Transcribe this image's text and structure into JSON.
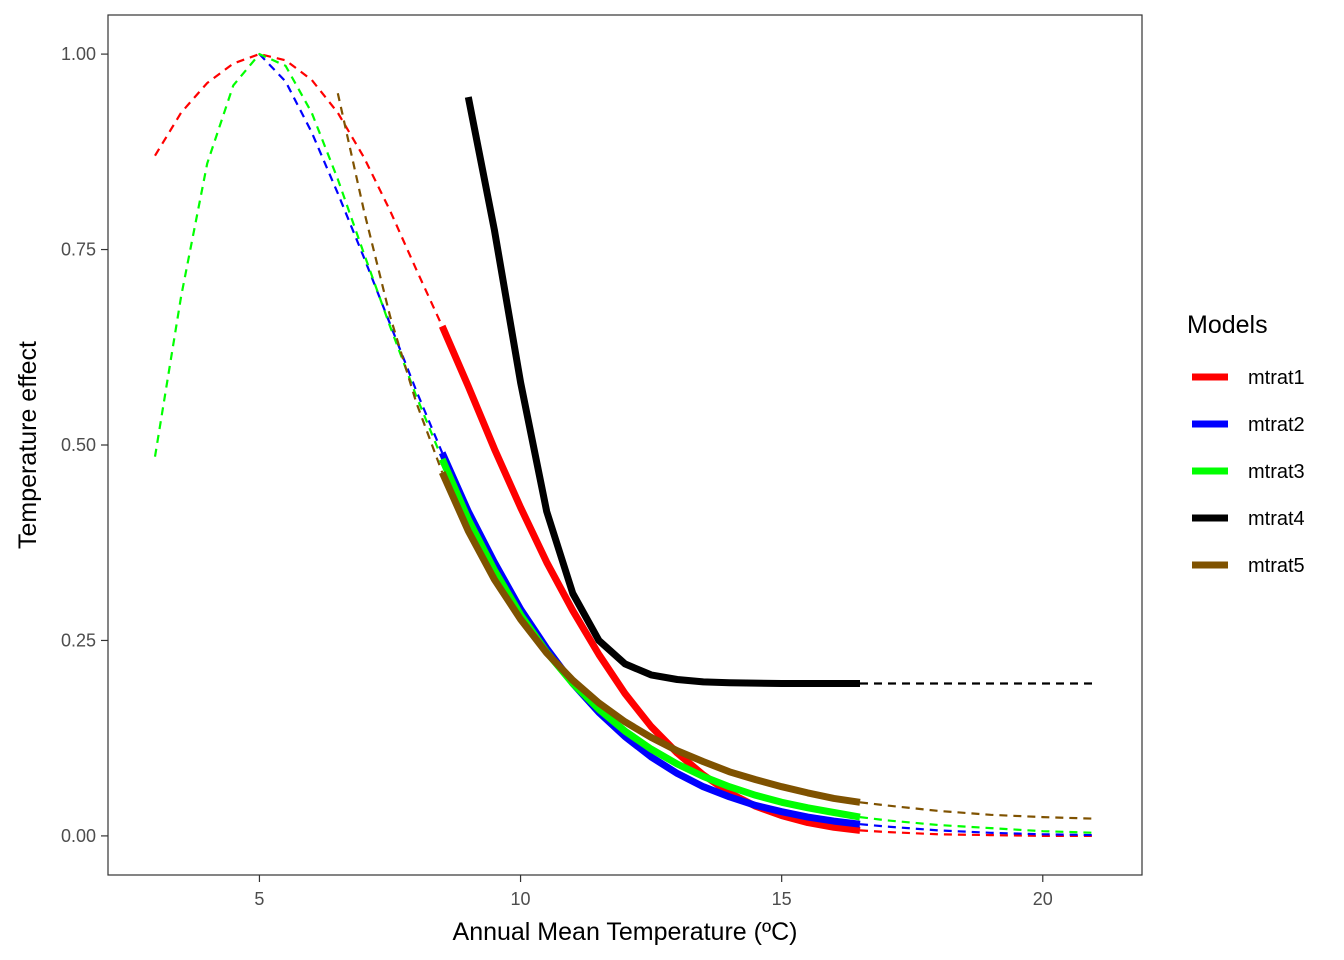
{
  "chart_data": {
    "type": "line",
    "xlabel": "Annual Mean Temperature (ºC)",
    "ylabel": "Temperature effect",
    "xlim": [
      2.1,
      21.9
    ],
    "ylim": [
      -0.05,
      1.05
    ],
    "xticks": [
      5,
      10,
      15,
      20
    ],
    "yticks": [
      0.0,
      0.25,
      0.5,
      0.75,
      1.0
    ],
    "xtick_labels": [
      "5",
      "10",
      "15",
      "20"
    ],
    "ytick_labels": [
      "0.00",
      "0.25",
      "0.50",
      "0.75",
      "1.00"
    ],
    "grid": false,
    "legend": {
      "title": "Models",
      "placement": "right"
    },
    "series": [
      {
        "name": "mtrat1",
        "color": "#ff0000",
        "dashed": [
          {
            "x": 3.0,
            "y": 0.87
          },
          {
            "x": 3.5,
            "y": 0.925
          },
          {
            "x": 4.0,
            "y": 0.963
          },
          {
            "x": 4.5,
            "y": 0.988
          },
          {
            "x": 5.0,
            "y": 1.0
          },
          {
            "x": 5.5,
            "y": 0.992
          },
          {
            "x": 6.0,
            "y": 0.967
          },
          {
            "x": 6.5,
            "y": 0.925
          },
          {
            "x": 7.0,
            "y": 0.868
          },
          {
            "x": 7.5,
            "y": 0.8
          },
          {
            "x": 8.0,
            "y": 0.725
          },
          {
            "x": 8.5,
            "y": 0.652
          }
        ],
        "solid": [
          {
            "x": 8.5,
            "y": 0.652
          },
          {
            "x": 9.0,
            "y": 0.575
          },
          {
            "x": 9.5,
            "y": 0.495
          },
          {
            "x": 10.0,
            "y": 0.42
          },
          {
            "x": 10.5,
            "y": 0.35
          },
          {
            "x": 11.0,
            "y": 0.288
          },
          {
            "x": 11.5,
            "y": 0.232
          },
          {
            "x": 12.0,
            "y": 0.182
          },
          {
            "x": 12.5,
            "y": 0.14
          },
          {
            "x": 13.0,
            "y": 0.106
          },
          {
            "x": 13.5,
            "y": 0.078
          },
          {
            "x": 14.0,
            "y": 0.055
          },
          {
            "x": 14.5,
            "y": 0.038
          },
          {
            "x": 15.0,
            "y": 0.026
          },
          {
            "x": 15.5,
            "y": 0.017
          },
          {
            "x": 16.0,
            "y": 0.011
          },
          {
            "x": 16.5,
            "y": 0.007
          }
        ],
        "tail": [
          {
            "x": 16.5,
            "y": 0.007
          },
          {
            "x": 17.0,
            "y": 0.005
          },
          {
            "x": 18.0,
            "y": 0.002
          },
          {
            "x": 19.0,
            "y": 0.001
          },
          {
            "x": 20.0,
            "y": 0.0
          },
          {
            "x": 21.0,
            "y": 0.0
          }
        ]
      },
      {
        "name": "mtrat2",
        "color": "#0000ff",
        "dashed": [
          {
            "x": 5.0,
            "y": 1.0
          },
          {
            "x": 5.5,
            "y": 0.965
          },
          {
            "x": 6.0,
            "y": 0.9
          },
          {
            "x": 6.5,
            "y": 0.822
          },
          {
            "x": 7.0,
            "y": 0.74
          },
          {
            "x": 7.5,
            "y": 0.655
          },
          {
            "x": 8.0,
            "y": 0.57
          },
          {
            "x": 8.5,
            "y": 0.49
          }
        ],
        "solid": [
          {
            "x": 8.5,
            "y": 0.49
          },
          {
            "x": 9.0,
            "y": 0.415
          },
          {
            "x": 9.5,
            "y": 0.35
          },
          {
            "x": 10.0,
            "y": 0.29
          },
          {
            "x": 10.5,
            "y": 0.24
          },
          {
            "x": 11.0,
            "y": 0.195
          },
          {
            "x": 11.5,
            "y": 0.158
          },
          {
            "x": 12.0,
            "y": 0.127
          },
          {
            "x": 12.5,
            "y": 0.101
          },
          {
            "x": 13.0,
            "y": 0.08
          },
          {
            "x": 13.5,
            "y": 0.063
          },
          {
            "x": 14.0,
            "y": 0.05
          },
          {
            "x": 14.5,
            "y": 0.039
          },
          {
            "x": 15.0,
            "y": 0.031
          },
          {
            "x": 15.5,
            "y": 0.024
          },
          {
            "x": 16.0,
            "y": 0.019
          },
          {
            "x": 16.5,
            "y": 0.015
          }
        ],
        "tail": [
          {
            "x": 16.5,
            "y": 0.015
          },
          {
            "x": 17.0,
            "y": 0.012
          },
          {
            "x": 18.0,
            "y": 0.007
          },
          {
            "x": 19.0,
            "y": 0.004
          },
          {
            "x": 20.0,
            "y": 0.002
          },
          {
            "x": 21.0,
            "y": 0.001
          }
        ]
      },
      {
        "name": "mtrat3",
        "color": "#00ff00",
        "dashed": [
          {
            "x": 3.0,
            "y": 0.485
          },
          {
            "x": 3.5,
            "y": 0.69
          },
          {
            "x": 4.0,
            "y": 0.86
          },
          {
            "x": 4.5,
            "y": 0.96
          },
          {
            "x": 5.0,
            "y": 1.0
          },
          {
            "x": 5.5,
            "y": 0.985
          },
          {
            "x": 6.0,
            "y": 0.925
          },
          {
            "x": 6.5,
            "y": 0.84
          },
          {
            "x": 7.0,
            "y": 0.745
          },
          {
            "x": 7.5,
            "y": 0.652
          },
          {
            "x": 8.0,
            "y": 0.563
          },
          {
            "x": 8.5,
            "y": 0.482
          }
        ],
        "solid": [
          {
            "x": 8.5,
            "y": 0.482
          },
          {
            "x": 9.0,
            "y": 0.405
          },
          {
            "x": 9.5,
            "y": 0.34
          },
          {
            "x": 10.0,
            "y": 0.283
          },
          {
            "x": 10.5,
            "y": 0.235
          },
          {
            "x": 11.0,
            "y": 0.195
          },
          {
            "x": 11.5,
            "y": 0.162
          },
          {
            "x": 12.0,
            "y": 0.134
          },
          {
            "x": 12.5,
            "y": 0.111
          },
          {
            "x": 13.0,
            "y": 0.092
          },
          {
            "x": 13.5,
            "y": 0.076
          },
          {
            "x": 14.0,
            "y": 0.063
          },
          {
            "x": 14.5,
            "y": 0.052
          },
          {
            "x": 15.0,
            "y": 0.043
          },
          {
            "x": 15.5,
            "y": 0.036
          },
          {
            "x": 16.0,
            "y": 0.03
          },
          {
            "x": 16.5,
            "y": 0.024
          }
        ],
        "tail": [
          {
            "x": 16.5,
            "y": 0.024
          },
          {
            "x": 17.0,
            "y": 0.02
          },
          {
            "x": 18.0,
            "y": 0.014
          },
          {
            "x": 19.0,
            "y": 0.01
          },
          {
            "x": 20.0,
            "y": 0.006
          },
          {
            "x": 21.0,
            "y": 0.004
          }
        ]
      },
      {
        "name": "mtrat4",
        "color": "#000000",
        "dashed": [],
        "solid": [
          {
            "x": 9.0,
            "y": 0.945
          },
          {
            "x": 9.5,
            "y": 0.775
          },
          {
            "x": 10.0,
            "y": 0.58
          },
          {
            "x": 10.5,
            "y": 0.415
          },
          {
            "x": 11.0,
            "y": 0.31
          },
          {
            "x": 11.5,
            "y": 0.25
          },
          {
            "x": 12.0,
            "y": 0.22
          },
          {
            "x": 12.5,
            "y": 0.206
          },
          {
            "x": 13.0,
            "y": 0.2
          },
          {
            "x": 13.5,
            "y": 0.197
          },
          {
            "x": 14.0,
            "y": 0.196
          },
          {
            "x": 15.0,
            "y": 0.195
          },
          {
            "x": 16.0,
            "y": 0.195
          },
          {
            "x": 16.5,
            "y": 0.195
          }
        ],
        "tail": [
          {
            "x": 16.5,
            "y": 0.195
          },
          {
            "x": 21.0,
            "y": 0.195
          }
        ]
      },
      {
        "name": "mtrat5",
        "color": "#7f5200",
        "dashed": [
          {
            "x": 6.5,
            "y": 0.95
          },
          {
            "x": 7.0,
            "y": 0.8
          },
          {
            "x": 7.5,
            "y": 0.665
          },
          {
            "x": 8.0,
            "y": 0.555
          },
          {
            "x": 8.5,
            "y": 0.465
          }
        ],
        "solid": [
          {
            "x": 8.5,
            "y": 0.465
          },
          {
            "x": 9.0,
            "y": 0.39
          },
          {
            "x": 9.5,
            "y": 0.328
          },
          {
            "x": 10.0,
            "y": 0.277
          },
          {
            "x": 10.5,
            "y": 0.234
          },
          {
            "x": 11.0,
            "y": 0.199
          },
          {
            "x": 11.5,
            "y": 0.17
          },
          {
            "x": 12.0,
            "y": 0.146
          },
          {
            "x": 12.5,
            "y": 0.126
          },
          {
            "x": 13.0,
            "y": 0.109
          },
          {
            "x": 13.5,
            "y": 0.095
          },
          {
            "x": 14.0,
            "y": 0.082
          },
          {
            "x": 14.5,
            "y": 0.072
          },
          {
            "x": 15.0,
            "y": 0.063
          },
          {
            "x": 15.5,
            "y": 0.055
          },
          {
            "x": 16.0,
            "y": 0.048
          },
          {
            "x": 16.5,
            "y": 0.043
          }
        ],
        "tail": [
          {
            "x": 16.5,
            "y": 0.043
          },
          {
            "x": 17.0,
            "y": 0.039
          },
          {
            "x": 18.0,
            "y": 0.032
          },
          {
            "x": 19.0,
            "y": 0.027
          },
          {
            "x": 20.0,
            "y": 0.024
          },
          {
            "x": 21.0,
            "y": 0.022
          }
        ]
      }
    ]
  }
}
